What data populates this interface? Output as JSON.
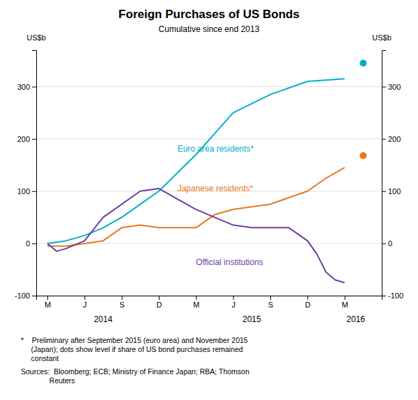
{
  "chart_data": {
    "type": "line",
    "title": "Foreign Purchases of US Bonds",
    "subtitle": "Cumulative since end 2013",
    "ylabel": "US$b",
    "y2label": "US$b",
    "xlim": [
      -0.3,
      9.0
    ],
    "xticks": [
      {
        "value": 0,
        "label": "M"
      },
      {
        "value": 1,
        "label": "J"
      },
      {
        "value": 2,
        "label": "S"
      },
      {
        "value": 3,
        "label": "D"
      },
      {
        "value": 4,
        "label": "M"
      },
      {
        "value": 5,
        "label": "J"
      },
      {
        "value": 6,
        "label": "S"
      },
      {
        "value": 7,
        "label": "D"
      },
      {
        "value": 8,
        "label": "M"
      }
    ],
    "ylim": [
      -100,
      370
    ],
    "yticks": [
      -100,
      0,
      100,
      200,
      300
    ],
    "y2lim": [
      -100,
      370
    ],
    "y2ticks": [
      -100,
      0,
      100,
      200,
      300
    ],
    "grid": true,
    "series": [
      {
        "type": "line",
        "color": "#00B0C8",
        "x": [
          0,
          0.5,
          1,
          1.5,
          2,
          2.5,
          3,
          3.5,
          4,
          4.5,
          5,
          6,
          7,
          8
        ],
        "values": [
          0,
          5,
          15,
          30,
          50,
          75,
          100,
          135,
          170,
          210,
          250,
          285,
          310,
          315
        ]
      },
      {
        "type": "line",
        "color": "#E87722",
        "x": [
          0,
          0.5,
          1,
          1.5,
          2,
          2.5,
          3,
          3.5,
          4,
          4.5,
          5,
          5.5,
          6,
          7,
          7.5,
          8
        ],
        "values": [
          -5,
          -5,
          0,
          5,
          30,
          35,
          30,
          30,
          30,
          55,
          65,
          70,
          75,
          100,
          125,
          145
        ]
      },
      {
        "type": "line",
        "color": "#6B3FA0",
        "x": [
          0,
          0.25,
          0.5,
          1,
          1.5,
          2,
          2.5,
          3,
          3.5,
          4,
          4.5,
          5,
          5.5,
          6,
          6.5,
          7,
          7.25,
          7.5,
          7.75,
          8
        ],
        "values": [
          0,
          -15,
          -10,
          5,
          50,
          75,
          100,
          105,
          85,
          65,
          50,
          35,
          30,
          30,
          30,
          5,
          -20,
          -55,
          -70,
          -75
        ]
      },
      {
        "type": "scatter",
        "color": "#00B0C8",
        "x": [
          8.5
        ],
        "values": [
          345
        ]
      },
      {
        "type": "scatter",
        "color": "#E87722",
        "x": [
          8.5
        ],
        "values": [
          168
        ]
      }
    ],
    "annotations": [
      {
        "text": "Euro area residents*",
        "x": 3.5,
        "y": 175,
        "color": "#00B0C8"
      },
      {
        "text": "Japanese residents*",
        "x": 3.5,
        "y": 100,
        "color": "#E87722"
      },
      {
        "text": "Official institutions",
        "x": 4.0,
        "y": -42,
        "color": "#6B3FA0"
      }
    ],
    "year_labels": [
      {
        "label": "2014",
        "x": 1.5
      },
      {
        "label": "2015",
        "x": 5.5
      },
      {
        "label": "2016",
        "x": 8.3
      }
    ],
    "footnotes": [
      "*    Preliminary after September 2015 (euro area) and November 2015\n     (Japan); dots show level if share of US bond purchases remained\n     constant",
      "Sources:  Bloomberg; ECB; Ministry of Finance Japan; RBA; Thomson\n              Reuters"
    ]
  }
}
